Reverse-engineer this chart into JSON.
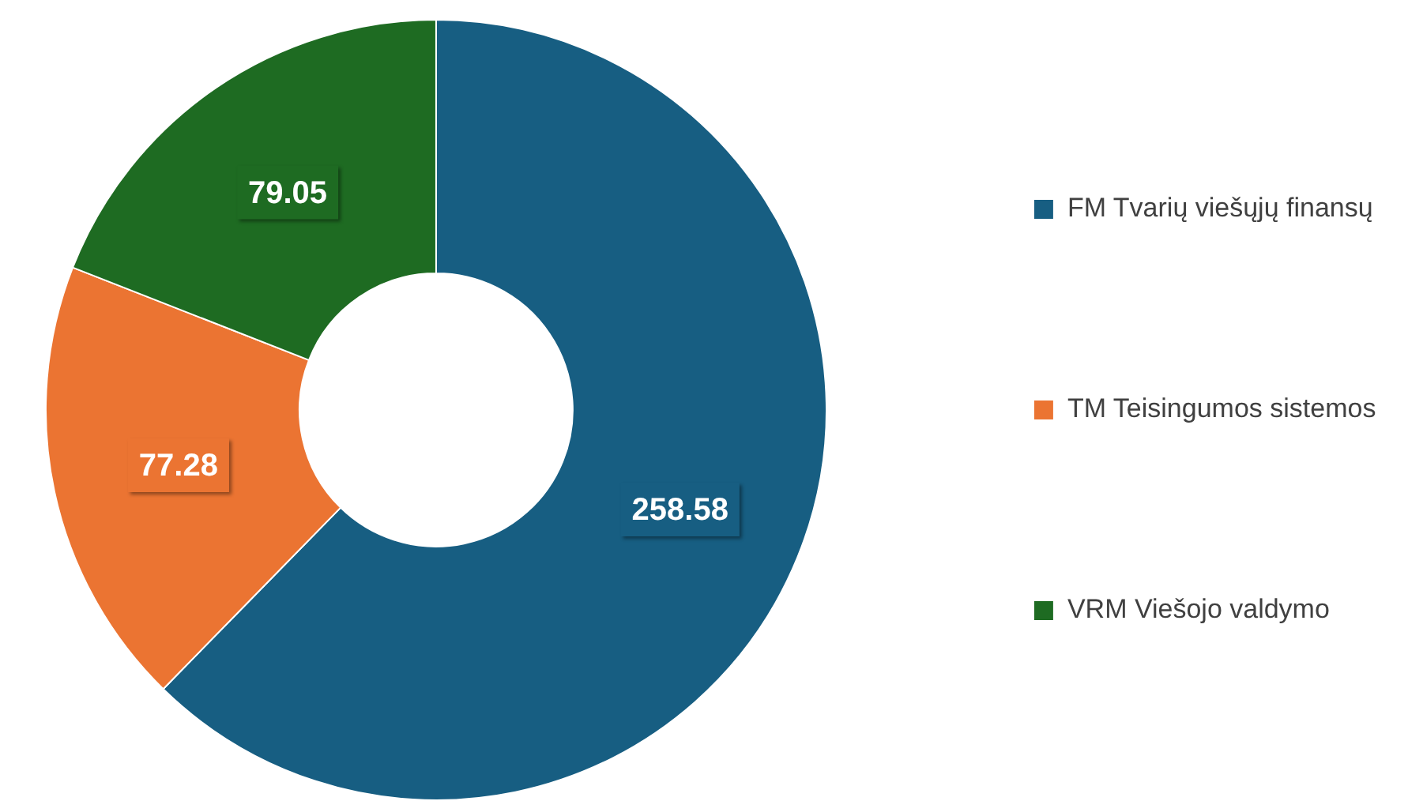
{
  "chart_data": {
    "type": "donut",
    "categories": [
      "FM Tvarių viešųjų finansų",
      "TM Teisingumos sistemos",
      "VRM Viešojo valdymo"
    ],
    "values": [
      258.58,
      77.28,
      79.05
    ],
    "colors": [
      "#175e82",
      "#eb7432",
      "#1e6b22"
    ],
    "data_labels": true,
    "legend": "right"
  }
}
